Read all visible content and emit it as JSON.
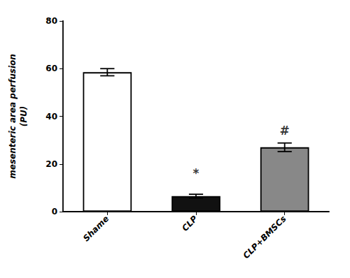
{
  "chart_data": {
    "type": "bar",
    "categories": [
      "Shame",
      "CLP",
      "CLP+BMSCs"
    ],
    "values": [
      58.5,
      6.5,
      27.0
    ],
    "errors": [
      1.5,
      0.8,
      1.8
    ],
    "colors": [
      "#ffffff",
      "#111111",
      "#888888"
    ],
    "ylabel": "mesenteric area perfusion\n(PU)",
    "ylim": [
      0,
      80
    ],
    "yticks": [
      0,
      20,
      40,
      60,
      80
    ],
    "annotations": [
      {
        "text": "*",
        "x": "CLP",
        "y": 13.5
      },
      {
        "text": "#",
        "x": "CLP+BMSCs",
        "y": 31.5
      }
    ],
    "grid": false
  }
}
